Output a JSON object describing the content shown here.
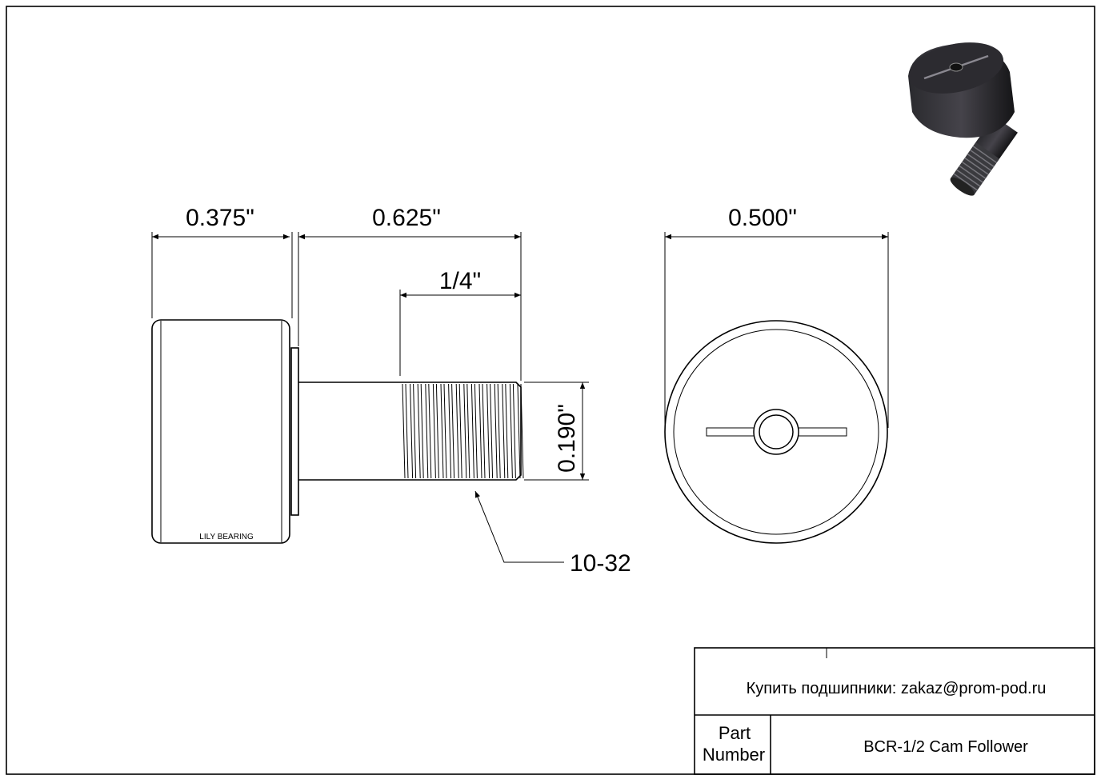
{
  "dimensions": {
    "roller_width": "0.375\"",
    "stud_length": "0.625\"",
    "thread_length": "1/4\"",
    "stud_diameter": "0.190\"",
    "thread_spec": "10-32",
    "roller_diameter": "0.500\""
  },
  "brand_mark": "LILY BEARING",
  "title_block": {
    "contact": "Купить подшипники: zakaz@prom-pod.ru",
    "part_number_label_line1": "Part",
    "part_number_label_line2": "Number",
    "part_number": "BCR-1/2 Cam Follower"
  }
}
